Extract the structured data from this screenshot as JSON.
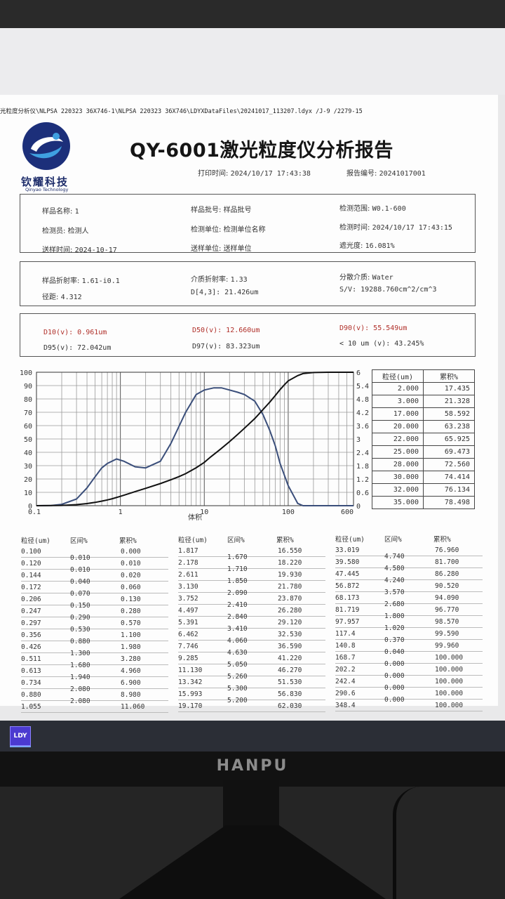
{
  "report": {
    "path": "光粒度分析仪\\NLPSA 220323 36X746-1\\NLPSA 220323 36X746\\LDYXDataFiles\\20241017_113207.ldyx  /J-9 /2279-15",
    "title": "QY-6001激光粒度仪分析报告",
    "company": "钦耀科技",
    "company_en": "Qinyao Technology",
    "print_time_label": "打印时间",
    "print_time": "2024/10/17 17:43:38",
    "report_no_label": "报告编号",
    "report_no": "20241017001"
  },
  "info": {
    "sample_name_label": "样品名称",
    "sample_name": "1",
    "batch_label": "样品批号",
    "batch": "样品批号",
    "range_label": "检测范围",
    "range": "W0.1-600",
    "tester_label": "检测员",
    "tester": "检测人",
    "unit_label": "检测单位",
    "unit": "检测单位名称",
    "test_time_label": "检测时间",
    "test_time": "2024/10/17 17:43:15",
    "send_time_label": "送样时间",
    "send_time": "2024-10-17",
    "send_unit_label": "送样单位",
    "send_unit": "送样单位",
    "shading_label": "遮光度",
    "shading": "16.081%"
  },
  "optics": {
    "sample_ri_label": "样品折射率",
    "sample_ri": "1.61-i0.1",
    "medium_ri_label": "介质折射率",
    "medium_ri": "1.33",
    "dispersant_label": "分散介质",
    "dispersant": "Water",
    "span_label": "径距",
    "span": "4.312",
    "d43_label": "D[4,3]",
    "d43": "21.426um",
    "sv_label": "S/V",
    "sv": "19288.760cm^2/cm^3"
  },
  "stats": {
    "d10_label": "D10(v)",
    "d10": "0.961um",
    "d50_label": "D50(v)",
    "d50": "12.660um",
    "d90_label": "D90(v)",
    "d90": "55.549um",
    "d95_label": "D95(v)",
    "d95": "72.042um",
    "d97_label": "D97(v)",
    "d97": "83.323um",
    "lt10_label": "< 10 um (v)",
    "lt10": "43.245%"
  },
  "chart_data": {
    "type": "line",
    "xscale": "log",
    "xlim": [
      0.1,
      600
    ],
    "ylim": [
      0,
      100
    ],
    "y2lim": [
      0,
      6
    ],
    "x_ticks": [
      "0.1",
      "1",
      "10",
      "100",
      "600"
    ],
    "y_ticks": [
      "0",
      "10",
      "20",
      "30",
      "40",
      "50",
      "60",
      "70",
      "80",
      "90",
      "100"
    ],
    "y2_ticks": [
      "0",
      "0.6",
      "1.2",
      "1.8",
      "2.4",
      "3",
      "3.6",
      "4.2",
      "4.8",
      "5.4",
      "6"
    ],
    "xlabel": "体积",
    "series": [
      {
        "axis": "right",
        "x": [
          0.1,
          0.15,
          0.2,
          0.3,
          0.4,
          0.5,
          0.6,
          0.7,
          0.9,
          1.1,
          1.5,
          2,
          3,
          4,
          6,
          8,
          10,
          13,
          16,
          20,
          25,
          30,
          40,
          50,
          60,
          70,
          80,
          100,
          130,
          150,
          200,
          300,
          600
        ],
        "y": [
          0,
          0.01,
          0.06,
          0.3,
          0.8,
          1.3,
          1.7,
          1.9,
          2.1,
          2.0,
          1.75,
          1.7,
          2.0,
          2.8,
          4.2,
          5.0,
          5.2,
          5.3,
          5.3,
          5.2,
          5.1,
          5.0,
          4.7,
          4.1,
          3.4,
          2.7,
          1.9,
          0.9,
          0.1,
          0,
          0,
          0,
          0
        ]
      },
      {
        "axis": "left",
        "x": [
          0.1,
          0.2,
          0.3,
          0.4,
          0.5,
          0.6,
          0.7,
          0.8,
          1,
          1.2,
          1.5,
          2,
          3,
          4,
          5,
          6,
          8,
          10,
          12,
          15,
          20,
          25,
          30,
          40,
          50,
          60,
          70,
          80,
          90,
          100,
          130,
          150,
          200,
          300,
          600
        ],
        "y": [
          0,
          0.2,
          0.8,
          1.6,
          2.5,
          3.4,
          4.3,
          5.2,
          7,
          8.6,
          10.6,
          13,
          16.6,
          19.4,
          21.8,
          24,
          28.4,
          32.5,
          36.7,
          41.5,
          48,
          53.4,
          58,
          65.3,
          72,
          77.5,
          82.5,
          87,
          90.6,
          93.5,
          97.5,
          99,
          99.8,
          100,
          100
        ]
      }
    ]
  },
  "side_table": {
    "headers": [
      "粒径(um)",
      "累积%"
    ],
    "rows": [
      [
        "2.000",
        "17.435"
      ],
      [
        "3.000",
        "21.328"
      ],
      [
        "17.000",
        "58.592"
      ],
      [
        "20.000",
        "63.238"
      ],
      [
        "22.000",
        "65.925"
      ],
      [
        "25.000",
        "69.473"
      ],
      [
        "28.000",
        "72.560"
      ],
      [
        "30.000",
        "74.414"
      ],
      [
        "32.000",
        "76.134"
      ],
      [
        "35.000",
        "78.498"
      ]
    ]
  },
  "dist_table": {
    "headers": [
      "粒径(um)",
      "区间%",
      "累积%"
    ],
    "col1": {
      "size": [
        "0.100",
        "0.120",
        "0.144",
        "0.172",
        "0.206",
        "0.247",
        "0.297",
        "0.356",
        "0.426",
        "0.511",
        "0.613",
        "0.734",
        "0.880",
        "1.055"
      ],
      "interval": [
        "0.010",
        "0.010",
        "0.040",
        "0.070",
        "0.150",
        "0.290",
        "0.530",
        "0.880",
        "1.300",
        "1.680",
        "1.940",
        "2.080",
        "2.080"
      ],
      "cum": [
        "0.000",
        "0.010",
        "0.020",
        "0.060",
        "0.130",
        "0.280",
        "0.570",
        "1.100",
        "1.980",
        "3.280",
        "4.960",
        "6.900",
        "8.980",
        "11.060"
      ]
    },
    "col2": {
      "size": [
        "1.817",
        "2.178",
        "2.611",
        "3.130",
        "3.752",
        "4.497",
        "5.391",
        "6.462",
        "7.746",
        "9.285",
        "11.130",
        "13.342",
        "15.993",
        "19.170"
      ],
      "interval": [
        "1.670",
        "1.710",
        "1.850",
        "2.090",
        "2.410",
        "2.840",
        "3.410",
        "4.060",
        "4.630",
        "5.050",
        "5.260",
        "5.300",
        "5.200"
      ],
      "cum": [
        "16.550",
        "18.220",
        "19.930",
        "21.780",
        "23.870",
        "26.280",
        "29.120",
        "32.530",
        "36.590",
        "41.220",
        "46.270",
        "51.530",
        "56.830",
        "62.030"
      ]
    },
    "col3": {
      "size": [
        "33.019",
        "39.580",
        "47.445",
        "56.872",
        "68.173",
        "81.719",
        "97.957",
        "117.4",
        "140.8",
        "168.7",
        "202.2",
        "242.4",
        "290.6",
        "348.4"
      ],
      "interval": [
        "4.740",
        "4.580",
        "4.240",
        "3.570",
        "2.680",
        "1.800",
        "1.020",
        "0.370",
        "0.040",
        "0.000",
        "0.000",
        "0.000",
        "0.000"
      ],
      "cum": [
        "76.960",
        "81.700",
        "86.280",
        "90.520",
        "94.090",
        "96.770",
        "98.570",
        "99.590",
        "99.960",
        "100.000",
        "100.000",
        "100.000",
        "100.000",
        "100.000"
      ]
    }
  },
  "taskbar": {
    "app_label": "LDY"
  },
  "monitor": {
    "brand": "HANPU"
  },
  "colors": {
    "freq_line": "#3a4e7a",
    "cum_line": "#111111",
    "red_text": "#b0302a"
  }
}
